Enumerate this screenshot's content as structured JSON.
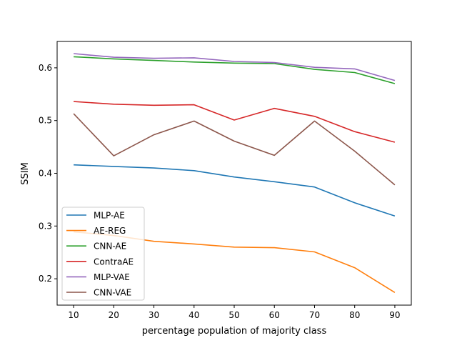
{
  "chart_data": {
    "type": "line",
    "xlabel": "percentage population of majority class",
    "ylabel": "SSIM",
    "x": [
      10,
      20,
      30,
      40,
      50,
      60,
      70,
      80,
      90
    ],
    "xticks": [
      10,
      20,
      30,
      40,
      50,
      60,
      70,
      80,
      90
    ],
    "yticks": [
      0.2,
      0.3,
      0.4,
      0.5,
      0.6
    ],
    "xlim": [
      5.9,
      94.1
    ],
    "ylim": [
      0.15,
      0.65
    ],
    "grid": false,
    "legend_position": "lower-left",
    "series": [
      {
        "name": "MLP-AE",
        "color": "#1f77b4",
        "values": [
          0.416,
          0.413,
          0.41,
          0.405,
          0.393,
          0.384,
          0.374,
          0.344,
          0.319
        ]
      },
      {
        "name": "AE-REG",
        "color": "#ff7f0e",
        "values": [
          0.289,
          0.282,
          0.271,
          0.266,
          0.26,
          0.259,
          0.251,
          0.221,
          0.174
        ]
      },
      {
        "name": "CNN-AE",
        "color": "#2ca02c",
        "values": [
          0.621,
          0.617,
          0.614,
          0.611,
          0.609,
          0.608,
          0.597,
          0.591,
          0.57
        ]
      },
      {
        "name": "ContraAE",
        "color": "#d62728",
        "values": [
          0.536,
          0.531,
          0.529,
          0.53,
          0.501,
          0.523,
          0.508,
          0.479,
          0.459
        ]
      },
      {
        "name": "MLP-VAE",
        "color": "#9467bd",
        "values": [
          0.627,
          0.62,
          0.618,
          0.619,
          0.612,
          0.61,
          0.601,
          0.598,
          0.576
        ]
      },
      {
        "name": "CNN-VAE",
        "color": "#8c564b",
        "values": [
          0.513,
          0.433,
          0.473,
          0.499,
          0.461,
          0.434,
          0.499,
          0.442,
          0.378
        ]
      }
    ]
  }
}
